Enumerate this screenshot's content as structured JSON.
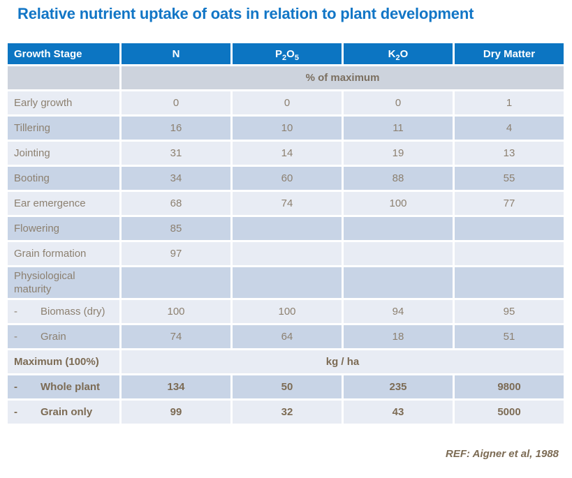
{
  "page": {
    "title": "Relative nutrient uptake of oats in relation to plant development",
    "reference": "REF: Aigner et al, 1988"
  },
  "colors": {
    "title_text": "#1276c6",
    "header_bg": "#0c75c2",
    "header_text": "#ffffff",
    "row_light": "#e8ecf4",
    "row_dark": "#c8d4e6",
    "row_unit": "#cdd3dd",
    "text_normal": "#8c8070",
    "text_bold": "#7c6b54"
  },
  "table": {
    "header": {
      "growth_stage": "Growth Stage",
      "n": "N",
      "p2o5": {
        "p": "P",
        "s2": "2",
        "o": "O",
        "s5": "5"
      },
      "k2o": {
        "k": "K",
        "s2": "2",
        "o": "O"
      },
      "dry_matter": "Dry Matter"
    },
    "rows": [
      {
        "label": "",
        "unit": "% of maximum"
      },
      {
        "label": "Early growth",
        "n": "0",
        "p2o5": "0",
        "k2o": "0",
        "dry_matter": "1"
      },
      {
        "label": "Tillering",
        "n": "16",
        "p2o5": "10",
        "k2o": "11",
        "dry_matter": "4"
      },
      {
        "label": "Jointing",
        "n": "31",
        "p2o5": "14",
        "k2o": "19",
        "dry_matter": "13"
      },
      {
        "label": "Booting",
        "n": "34",
        "p2o5": "60",
        "k2o": "88",
        "dry_matter": "55"
      },
      {
        "label": "Ear emergence",
        "n": "68",
        "p2o5": "74",
        "k2o": "100",
        "dry_matter": "77"
      },
      {
        "label": "Flowering",
        "n": "85",
        "p2o5": "",
        "k2o": "",
        "dry_matter": ""
      },
      {
        "label": "Grain formation",
        "n": "97",
        "p2o5": "",
        "k2o": "",
        "dry_matter": ""
      },
      {
        "label": "Physiological maturity",
        "n": "",
        "p2o5": "",
        "k2o": "",
        "dry_matter": ""
      },
      {
        "dash": "-",
        "label": "Biomass (dry)",
        "n": "100",
        "p2o5": "100",
        "k2o": "94",
        "dry_matter": "95"
      },
      {
        "dash": "-",
        "label": "Grain",
        "n": "74",
        "p2o5": "64",
        "k2o": "18",
        "dry_matter": "51"
      },
      {
        "label": "Maximum (100%)",
        "unit": "kg / ha"
      },
      {
        "dash": "-",
        "label": "Whole plant",
        "n": "134",
        "p2o5": "50",
        "k2o": "235",
        "dry_matter": "9800"
      },
      {
        "dash": "-",
        "label": "Grain only",
        "n": "99",
        "p2o5": "32",
        "k2o": "43",
        "dry_matter": "5000"
      }
    ]
  }
}
